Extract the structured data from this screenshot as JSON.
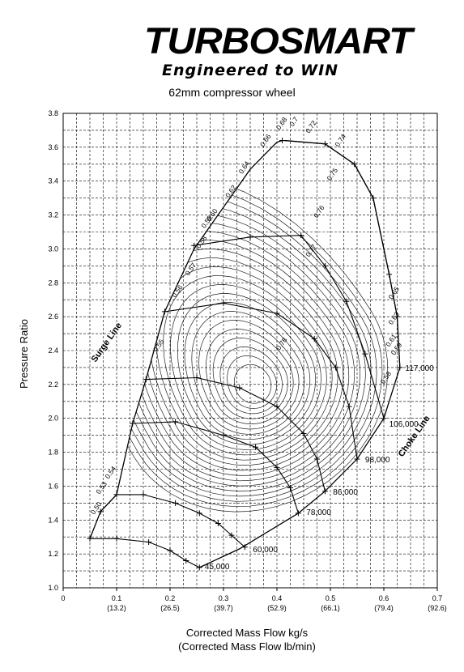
{
  "logo": {
    "brand": "TURBOSMART",
    "tagline": "Engineered to WIN"
  },
  "chart_data": {
    "type": "line",
    "title": "62mm compressor wheel",
    "xlabel": "Corrected Mass Flow kg/s",
    "xlabel_secondary": "(Corrected Mass Flow lb/min)",
    "ylabel": "Pressure Ratio",
    "xlim": [
      0,
      0.7
    ],
    "ylim": [
      1.0,
      3.8
    ],
    "grid": true,
    "x_ticks": [
      {
        "value": 0,
        "label": "0",
        "sub": ""
      },
      {
        "value": 0.1,
        "label": "0.1",
        "sub": "(13.2)"
      },
      {
        "value": 0.2,
        "label": "0.2",
        "sub": "(26.5)"
      },
      {
        "value": 0.3,
        "label": "0.3",
        "sub": "(39.7)"
      },
      {
        "value": 0.4,
        "label": "0.4",
        "sub": "(52.9)"
      },
      {
        "value": 0.5,
        "label": "0.5",
        "sub": "(66.1)"
      },
      {
        "value": 0.6,
        "label": "0.6",
        "sub": "(79.4)"
      },
      {
        "value": 0.7,
        "label": "0.7",
        "sub": "(92.6)"
      }
    ],
    "y_ticks": [
      "1.0",
      "1.2",
      "1.4",
      "1.6",
      "1.8",
      "2.0",
      "2.2",
      "2.4",
      "2.6",
      "2.8",
      "3.0",
      "3.2",
      "3.4",
      "3.6",
      "3.8"
    ],
    "surge_line": {
      "label": "Surge Line",
      "points": [
        [
          0.05,
          1.29
        ],
        [
          0.07,
          1.45
        ],
        [
          0.1,
          1.55
        ],
        [
          0.13,
          1.97
        ],
        [
          0.155,
          2.23
        ],
        [
          0.19,
          2.63
        ],
        [
          0.245,
          3.0
        ],
        [
          0.35,
          3.47
        ],
        [
          0.4,
          3.63
        ],
        [
          0.41,
          3.64
        ]
      ]
    },
    "choke_line": {
      "label": "Choke Line",
      "points": [
        [
          0.415,
          3.64
        ],
        [
          0.49,
          3.62
        ],
        [
          0.545,
          3.5
        ],
        [
          0.58,
          3.3
        ],
        [
          0.61,
          2.85
        ],
        [
          0.625,
          2.6
        ],
        [
          0.63,
          2.3
        ],
        [
          0.6,
          2.0
        ],
        [
          0.55,
          1.76
        ],
        [
          0.49,
          1.57
        ],
        [
          0.44,
          1.44
        ],
        [
          0.33,
          1.23
        ],
        [
          0.255,
          1.12
        ]
      ]
    },
    "speed_lines": [
      {
        "label": "45,000",
        "points": [
          [
            0.05,
            1.29
          ],
          [
            0.1,
            1.29
          ],
          [
            0.16,
            1.27
          ],
          [
            0.2,
            1.22
          ],
          [
            0.23,
            1.16
          ],
          [
            0.255,
            1.12
          ]
        ]
      },
      {
        "label": "60,000",
        "points": [
          [
            0.07,
            1.45
          ],
          [
            0.1,
            1.55
          ],
          [
            0.15,
            1.55
          ],
          [
            0.21,
            1.5
          ],
          [
            0.255,
            1.44
          ],
          [
            0.29,
            1.38
          ],
          [
            0.315,
            1.31
          ],
          [
            0.34,
            1.24
          ]
        ]
      },
      {
        "label": "78,000",
        "points": [
          [
            0.13,
            1.97
          ],
          [
            0.21,
            1.98
          ],
          [
            0.3,
            1.9
          ],
          [
            0.36,
            1.83
          ],
          [
            0.4,
            1.71
          ],
          [
            0.425,
            1.59
          ],
          [
            0.44,
            1.44
          ]
        ]
      },
      {
        "label": "86,000",
        "points": [
          [
            0.155,
            2.23
          ],
          [
            0.25,
            2.24
          ],
          [
            0.33,
            2.18
          ],
          [
            0.4,
            2.07
          ],
          [
            0.45,
            1.91
          ],
          [
            0.475,
            1.76
          ],
          [
            0.49,
            1.57
          ]
        ]
      },
      {
        "label": "98,000",
        "points": [
          [
            0.19,
            2.63
          ],
          [
            0.3,
            2.68
          ],
          [
            0.4,
            2.62
          ],
          [
            0.47,
            2.47
          ],
          [
            0.51,
            2.3
          ],
          [
            0.535,
            2.07
          ],
          [
            0.55,
            1.76
          ]
        ]
      },
      {
        "label": "106,000",
        "points": [
          [
            0.245,
            3.02
          ],
          [
            0.35,
            3.07
          ],
          [
            0.445,
            3.08
          ],
          [
            0.49,
            2.9
          ],
          [
            0.53,
            2.69
          ],
          [
            0.565,
            2.38
          ],
          [
            0.6,
            2.0
          ]
        ]
      },
      {
        "label": "117,000",
        "points": [
          [
            0.41,
            3.64
          ],
          [
            0.49,
            3.62
          ],
          [
            0.545,
            3.5
          ],
          [
            0.58,
            3.3
          ],
          [
            0.61,
            2.85
          ],
          [
            0.625,
            2.6
          ],
          [
            0.63,
            2.3
          ]
        ]
      }
    ],
    "speed_labels_pos": [
      {
        "label": "45,000",
        "x": 0.265,
        "y": 1.11
      },
      {
        "label": "60,000",
        "x": 0.355,
        "y": 1.21
      },
      {
        "label": "78,000",
        "x": 0.455,
        "y": 1.43
      },
      {
        "label": "86,000",
        "x": 0.505,
        "y": 1.55
      },
      {
        "label": "98,000",
        "x": 0.565,
        "y": 1.74
      },
      {
        "label": "106,000",
        "x": 0.61,
        "y": 1.95
      },
      {
        "label": "117,000",
        "x": 0.64,
        "y": 2.28
      }
    ],
    "efficiency_islands": [
      {
        "label": "0.50",
        "x": 0.058,
        "y": 1.43
      },
      {
        "label": "0.53",
        "x": 0.068,
        "y": 1.55
      },
      {
        "label": "0.54",
        "x": 0.085,
        "y": 1.64
      },
      {
        "label": "0.55",
        "x": 0.175,
        "y": 2.39
      },
      {
        "label": "0.56",
        "x": 0.21,
        "y": 2.71
      },
      {
        "label": "0.57",
        "x": 0.235,
        "y": 2.84
      },
      {
        "label": "0.58",
        "x": 0.255,
        "y": 3.0
      },
      {
        "label": "0.59",
        "x": 0.265,
        "y": 3.12
      },
      {
        "label": "0.60",
        "x": 0.275,
        "y": 3.16
      },
      {
        "label": "0.62",
        "x": 0.31,
        "y": 3.3
      },
      {
        "label": "0.64",
        "x": 0.335,
        "y": 3.44
      },
      {
        "label": "0.66",
        "x": 0.375,
        "y": 3.6
      },
      {
        "label": "0.68",
        "x": 0.405,
        "y": 3.7
      },
      {
        "label": "0.7",
        "x": 0.43,
        "y": 3.72
      },
      {
        "label": "0.72",
        "x": 0.46,
        "y": 3.68
      },
      {
        "label": "0.74",
        "x": 0.515,
        "y": 3.6
      },
      {
        "label": "0.75",
        "x": 0.5,
        "y": 3.4
      },
      {
        "label": "0.76",
        "x": 0.475,
        "y": 3.18
      },
      {
        "label": "0.77",
        "x": 0.46,
        "y": 2.95
      },
      {
        "label": "0.78",
        "x": 0.405,
        "y": 2.4
      },
      {
        "label": "0.65",
        "x": 0.615,
        "y": 2.7
      },
      {
        "label": "0.63",
        "x": 0.615,
        "y": 2.55
      },
      {
        "label": "0.61",
        "x": 0.61,
        "y": 2.42
      },
      {
        "label": "0.59",
        "x": 0.62,
        "y": 2.37
      },
      {
        "label": "0.58",
        "x": 0.6,
        "y": 2.2
      }
    ]
  }
}
